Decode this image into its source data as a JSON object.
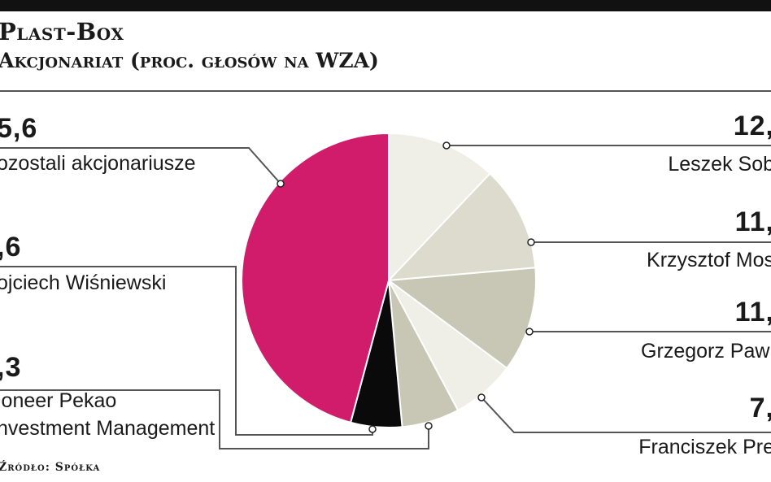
{
  "header": {
    "title": "Plast-Box",
    "subtitle": "Akcjonariat (proc. głosów na WZA)"
  },
  "footer": {
    "source": "Źródło: Spółka"
  },
  "colors": {
    "magenta": "#d01c6b",
    "black": "#0a0a0a",
    "light_beige": "#efeee7",
    "light_gray": "#dcdbcd",
    "mid_gray": "#c8c7b6",
    "line": "#555555"
  },
  "chart_data": {
    "type": "pie",
    "title": "Akcjonariat (proc. głosów na WZA)",
    "slices": [
      {
        "label": "Leszek Sob",
        "value": "12,",
        "color": "#efeee7"
      },
      {
        "label": "Krzysztof Mos",
        "value": "11,",
        "color": "#dcdbcd"
      },
      {
        "label": "Grzegorz Pawl",
        "value": "11,",
        "color": "#c8c7b6"
      },
      {
        "label": "Franciszek Pre",
        "value": "7,",
        "color": "#efeee7"
      },
      {
        "label": "ioneer Pekao\nnvestment Management",
        "value": ",3",
        "color": "#c8c7b6"
      },
      {
        "label": "ojciech Wiśniewski",
        "value": ",6",
        "color": "#0a0a0a"
      },
      {
        "label": "ozostali akcjonariusze",
        "value": "5,6",
        "color": "#d01c6b"
      }
    ],
    "approx_values": [
      12,
      11.5,
      11.5,
      7,
      6.3,
      5.6,
      45.6
    ]
  }
}
